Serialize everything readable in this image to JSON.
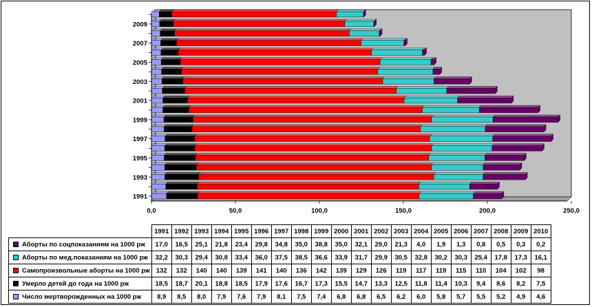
{
  "chart_data": {
    "type": "bar",
    "orientation": "horizontal",
    "stacked": true,
    "categories": [
      "1991",
      "1992",
      "1993",
      "1994",
      "1995",
      "1996",
      "1997",
      "1998",
      "1999",
      "2000",
      "2001",
      "2002",
      "2003",
      "2004",
      "2005",
      "2006",
      "2007",
      "2008",
      "2009",
      "2010"
    ],
    "xlim": [
      0,
      250
    ],
    "x_ticks": [
      "0,0",
      "50,0",
      "100,0",
      "150,0",
      "200,0",
      "250,0"
    ],
    "y_tick_labels": [
      "1991",
      "1993",
      "1995",
      "1997",
      "1999",
      "2001",
      "2003",
      "2005",
      "2007",
      "2009"
    ],
    "grid": false,
    "legend": "data-table-below",
    "plot_background": "#c0c0c0",
    "series": [
      {
        "name": "Число мертворожденных на 1000 рж",
        "color": "#9999ff",
        "values": [
          8.9,
          8.5,
          8.0,
          7.9,
          7.6,
          7.9,
          8.1,
          7.5,
          7.4,
          6.8,
          6.8,
          6.5,
          6.2,
          6.0,
          5.8,
          5.7,
          5.5,
          5.2,
          4.9,
          4.6
        ],
        "labels": [
          "8,9",
          "8,5",
          "8,0",
          "7,9",
          "7,6",
          "7,9",
          "8,1",
          "7,5",
          "7,4",
          "6,8",
          "6,8",
          "6,5",
          "6,2",
          "6,0",
          "5,8",
          "5,7",
          "5,5",
          "5,2",
          "4,9",
          "4,6"
        ]
      },
      {
        "name": "Умерло детей до года на 1000 рж",
        "color": "#000000",
        "values": [
          18.5,
          18.7,
          20.1,
          18.8,
          18.5,
          17.9,
          17.6,
          16.7,
          17.3,
          15.5,
          14.7,
          13.3,
          12.5,
          11.8,
          11.4,
          10.3,
          9.4,
          8.6,
          8.2,
          7.5
        ],
        "labels": [
          "18,5",
          "18,7",
          "20,1",
          "18,8",
          "18,5",
          "17,9",
          "17,6",
          "16,7",
          "17,3",
          "15,5",
          "14,7",
          "13,3",
          "12,5",
          "11,8",
          "11,4",
          "10,3",
          "9,4",
          "8,6",
          "8,2",
          "7,5"
        ]
      },
      {
        "name": "Самопроизвольные аборты на 1000 рж",
        "color": "#ff0000",
        "values": [
          132,
          132,
          140,
          140,
          139,
          141,
          140,
          136,
          142,
          139,
          129,
          126,
          119,
          117,
          119,
          115,
          110,
          104,
          102,
          98
        ],
        "labels": [
          "132",
          "132",
          "140",
          "140",
          "139",
          "141",
          "140",
          "136",
          "142",
          "139",
          "129",
          "126",
          "119",
          "117",
          "119",
          "115",
          "110",
          "104",
          "102",
          "98"
        ]
      },
      {
        "name": "Аборты по мед.показаниям на 1000 рж",
        "color": "#33cccc",
        "values": [
          32.2,
          30.3,
          29.4,
          30.8,
          33.4,
          36.0,
          37.5,
          38.5,
          36.6,
          33.9,
          31.7,
          29.9,
          30.5,
          32.8,
          30.2,
          30.3,
          25.4,
          17.8,
          17.3,
          16.1
        ],
        "labels": [
          "32,2",
          "30,3",
          "29,4",
          "30,8",
          "33,4",
          "36,0",
          "37,5",
          "38,5",
          "36,6",
          "33,9",
          "31,7",
          "29,9",
          "30,5",
          "32,8",
          "30,2",
          "30,3",
          "25,4",
          "17,8",
          "17,3",
          "16,1"
        ]
      },
      {
        "name": "Аборты по соцпоказаниям на 1000 рж",
        "color": "#660066",
        "values": [
          17.0,
          16.5,
          25.1,
          21.8,
          23.4,
          29.8,
          34.8,
          35.0,
          38.8,
          35.0,
          32.1,
          29.0,
          21.3,
          4.0,
          1.9,
          1.3,
          0.8,
          0.5,
          0.3,
          0.2
        ],
        "labels": [
          "17,0",
          "16,5",
          "25,1",
          "21,8",
          "23,4",
          "29,8",
          "34,8",
          "35,0",
          "38,8",
          "35,0",
          "32,1",
          "29,0",
          "21,3",
          "4,0",
          "1,9",
          "1,3",
          "0,8",
          "0,5",
          "0,3",
          "0,2"
        ]
      }
    ],
    "table_series_order": [
      4,
      3,
      2,
      1,
      0
    ]
  }
}
